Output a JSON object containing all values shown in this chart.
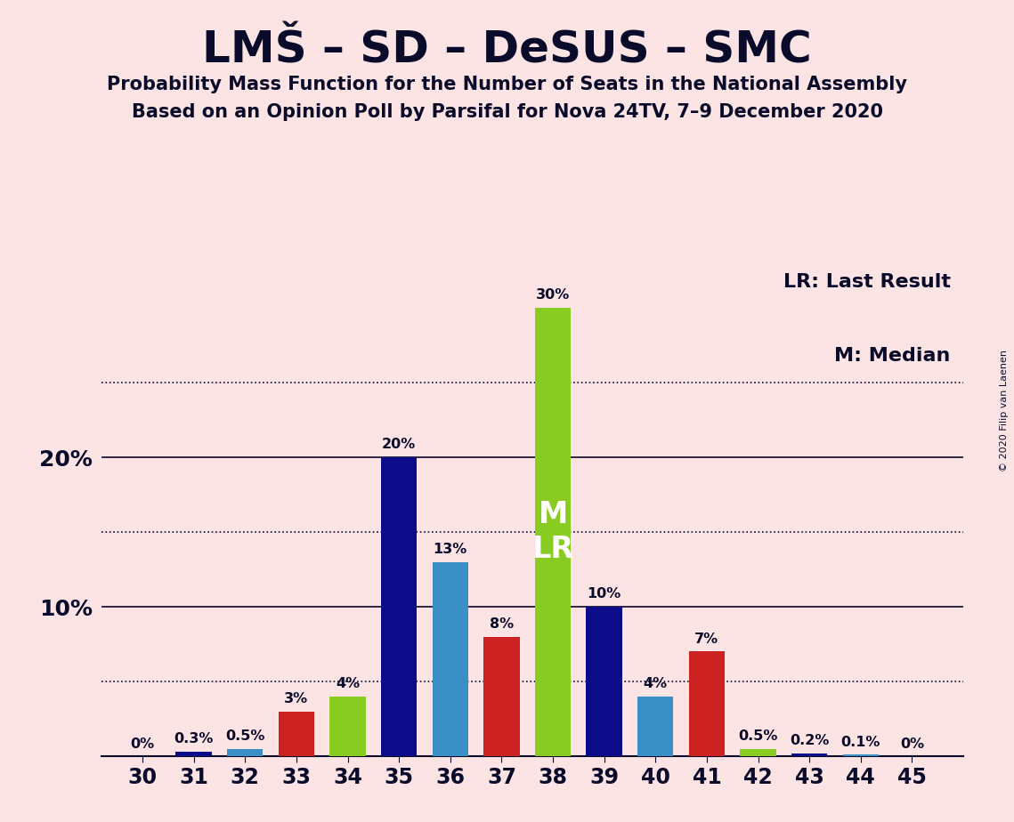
{
  "title": "LMŠ – SD – DeSUS – SMC",
  "subtitle1": "Probability Mass Function for the Number of Seats in the National Assembly",
  "subtitle2": "Based on an Opinion Poll by Parsifal for Nova 24TV, 7–9 December 2020",
  "copyright": "© 2020 Filip van Laenen",
  "legend_lr": "LR: Last Result",
  "legend_m": "M: Median",
  "seats": [
    30,
    31,
    32,
    33,
    34,
    35,
    36,
    37,
    38,
    39,
    40,
    41,
    42,
    43,
    44,
    45
  ],
  "probabilities": [
    0.0,
    0.3,
    0.5,
    3.0,
    4.0,
    20.0,
    13.0,
    8.0,
    30.0,
    10.0,
    4.0,
    7.0,
    0.5,
    0.2,
    0.1,
    0.0
  ],
  "bar_colors": [
    "#0c0c8a",
    "#0c0c8a",
    "#3a8fc4",
    "#cc2222",
    "#88cc22",
    "#0c0c8a",
    "#3a8fc4",
    "#cc2222",
    "#88cc22",
    "#0c0c8a",
    "#3a8fc4",
    "#cc2222",
    "#88cc22",
    "#0c0c8a",
    "#3a8fc4",
    "#0c0c8a"
  ],
  "label_texts": [
    "0%",
    "0.3%",
    "0.5%",
    "3%",
    "4%",
    "20%",
    "13%",
    "8%",
    "30%",
    "10%",
    "4%",
    "7%",
    "0.5%",
    "0.2%",
    "0.1%",
    "0%"
  ],
  "median_seat": 38,
  "lr_seat": 38,
  "background_color": "#fce4e4",
  "ylim": [
    0,
    33
  ],
  "solid_grid": [
    10,
    20
  ],
  "dotted_grid": [
    5,
    15,
    25
  ],
  "bar_width": 0.7,
  "text_color": "#0a0a2a"
}
